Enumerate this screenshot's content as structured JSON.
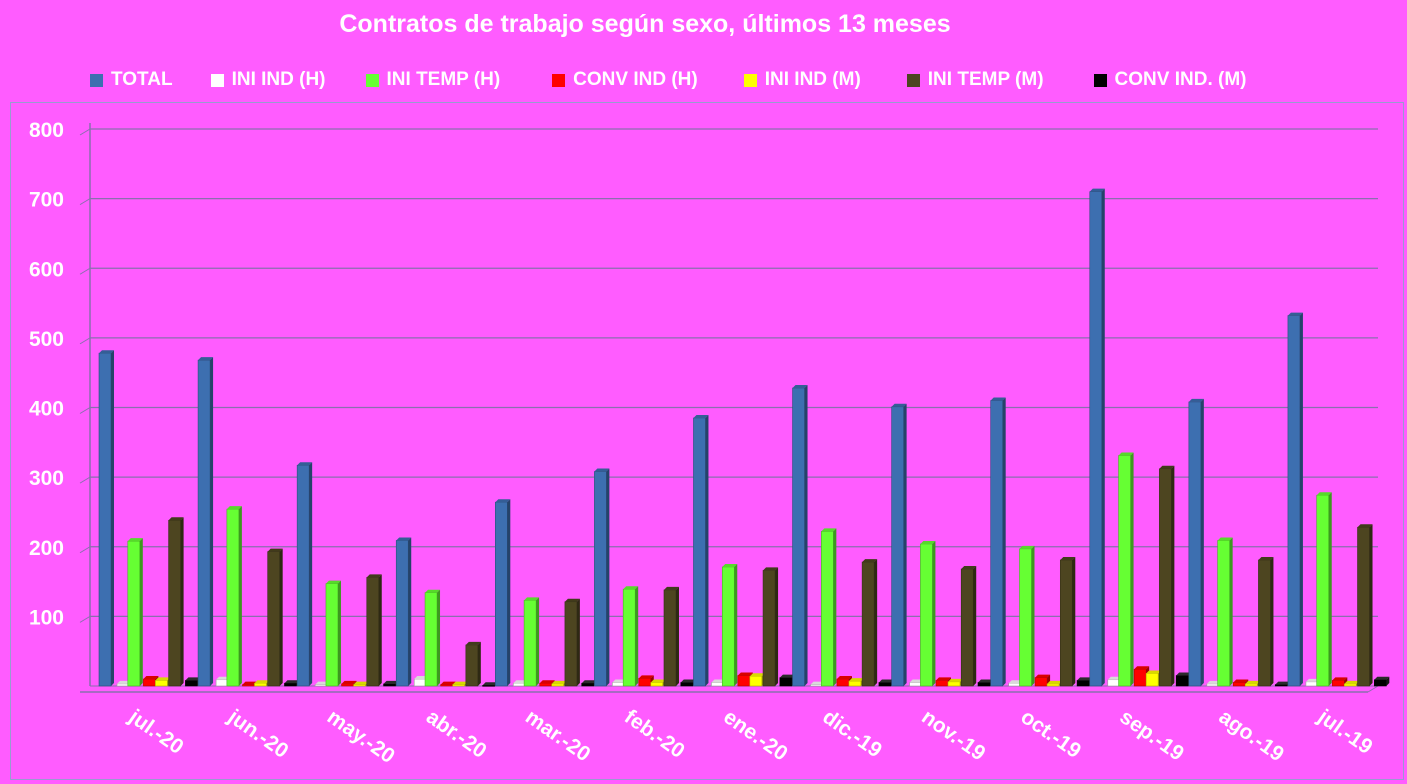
{
  "chart_data": {
    "type": "bar",
    "title": "Contratos de trabajo según sexo, últimos 13 meses",
    "xlabel": "",
    "ylabel": "",
    "ylim": [
      0,
      800
    ],
    "yticks": [
      100,
      200,
      300,
      400,
      500,
      600,
      700,
      800
    ],
    "grid": true,
    "legend_position": "top",
    "categories": [
      "jul.-20",
      "jun.-20",
      "may.-20",
      "abr.-20",
      "mar.-20",
      "feb.-20",
      "ene.-20",
      "dic.-19",
      "nov.-19",
      "oct.-19",
      "sep.-19",
      "ago.-19",
      "jul.-19"
    ],
    "series": [
      {
        "name": "TOTAL",
        "color": "#3d6fb0",
        "values": [
          478,
          468,
          317,
          209,
          264,
          308,
          385,
          428,
          401,
          410,
          710,
          408,
          532
        ]
      },
      {
        "name": "INI IND (H)",
        "color": "#ffffff",
        "values": [
          3,
          9,
          2,
          10,
          4,
          5,
          5,
          2,
          5,
          4,
          9,
          3,
          6
        ]
      },
      {
        "name": "INI TEMP (H)",
        "color": "#66ff33",
        "values": [
          208,
          254,
          147,
          134,
          123,
          139,
          171,
          222,
          204,
          197,
          331,
          209,
          274
        ]
      },
      {
        "name": "CONV IND (H)",
        "color": "#ff0000",
        "values": [
          10,
          2,
          3,
          2,
          4,
          11,
          15,
          10,
          8,
          12,
          24,
          5,
          8
        ]
      },
      {
        "name": "INI IND (M)",
        "color": "#ffff00",
        "values": [
          8,
          4,
          2,
          2,
          3,
          5,
          14,
          7,
          6,
          3,
          18,
          3,
          3
        ]
      },
      {
        "name": "INI TEMP  (M)",
        "color": "#4d4520",
        "values": [
          238,
          193,
          156,
          59,
          121,
          138,
          166,
          178,
          168,
          181,
          312,
          181,
          228
        ]
      },
      {
        "name": "CONV IND.  (M)",
        "color": "#000000",
        "values": [
          8,
          4,
          3,
          1,
          4,
          5,
          12,
          5,
          5,
          8,
          15,
          2,
          9
        ]
      }
    ]
  }
}
